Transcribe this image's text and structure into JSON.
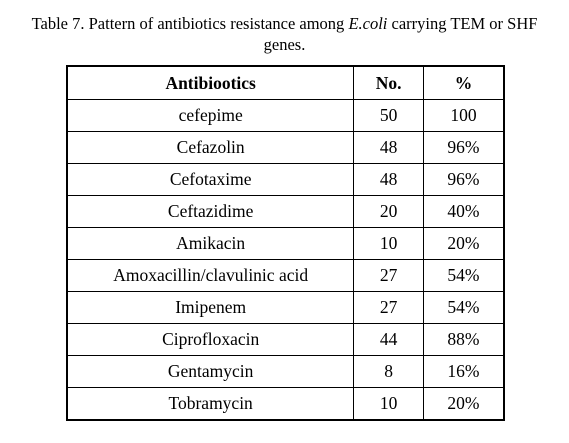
{
  "caption": {
    "before": "Table 7. Pattern of antibiotics resistance among ",
    "italic": "E.coli",
    "after": " carrying TEM or SHF genes."
  },
  "table": {
    "header": [
      "Antibiootics",
      "No.",
      "%"
    ],
    "rows": [
      [
        "cefepime",
        "50",
        "100"
      ],
      [
        "Cefazolin",
        "48",
        "96%"
      ],
      [
        "Cefotaxime",
        "48",
        "96%"
      ],
      [
        "Ceftazidime",
        "20",
        "40%"
      ],
      [
        "Amikacin",
        "10",
        "20%"
      ],
      [
        "Amoxacillin/clavulinic acid",
        "27",
        "54%"
      ],
      [
        "Imipenem",
        "27",
        "54%"
      ],
      [
        "Ciprofloxacin",
        "44",
        "88%"
      ],
      [
        "Gentamycin",
        "8",
        "16%"
      ],
      [
        "Tobramycin",
        "10",
        "20%"
      ]
    ]
  }
}
